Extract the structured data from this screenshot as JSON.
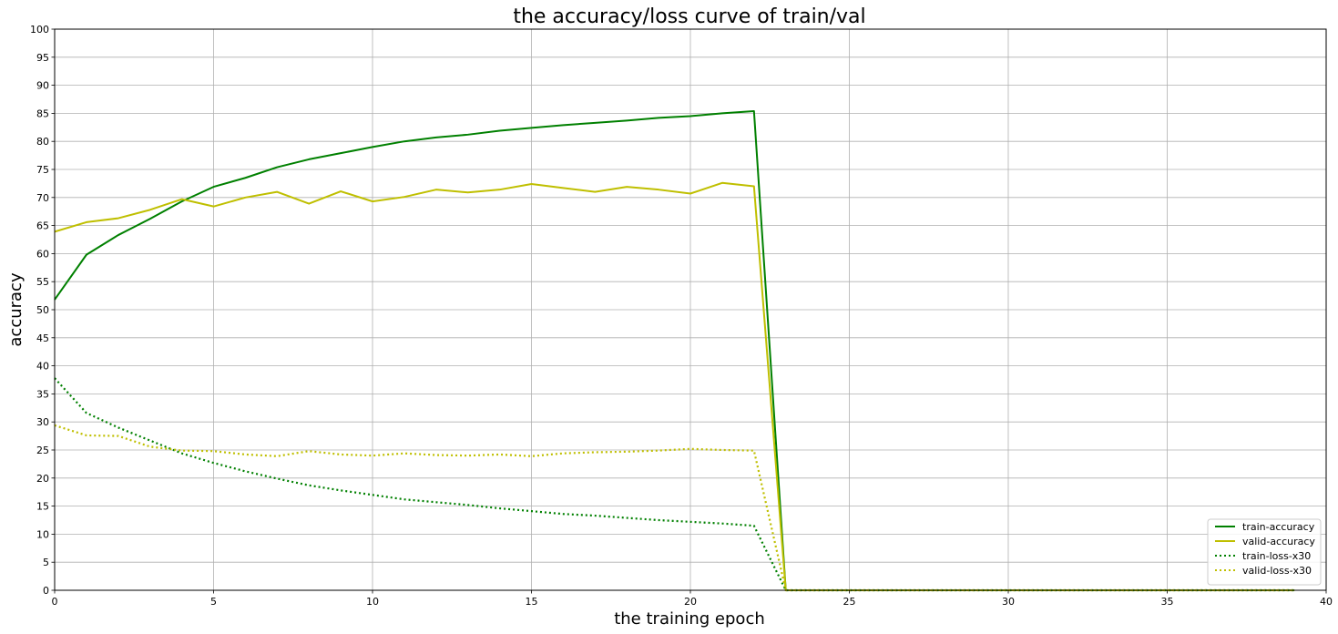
{
  "chart_data": {
    "type": "line",
    "title": "the accuracy/loss curve of train/val",
    "xlabel": "the training epoch",
    "ylabel": "accuracy",
    "xlim": [
      0,
      40
    ],
    "ylim": [
      0,
      100
    ],
    "xticks": [
      0,
      5,
      10,
      15,
      20,
      25,
      30,
      35,
      40
    ],
    "yticks": [
      0,
      5,
      10,
      15,
      20,
      25,
      30,
      35,
      40,
      45,
      50,
      55,
      60,
      65,
      70,
      75,
      80,
      85,
      90,
      95,
      100
    ],
    "grid": true,
    "legend_position": "bottom-right",
    "x": [
      0,
      1,
      2,
      3,
      4,
      5,
      6,
      7,
      8,
      9,
      10,
      11,
      12,
      13,
      14,
      15,
      16,
      17,
      18,
      19,
      20,
      21,
      22,
      23,
      24,
      25,
      26,
      27,
      28,
      29,
      30,
      31,
      32,
      33,
      34,
      35,
      36,
      37,
      38,
      39
    ],
    "series": [
      {
        "name": "train-accuracy",
        "color": "#008000",
        "style": "solid",
        "values": [
          51.8,
          59.8,
          63.3,
          66.2,
          69.3,
          71.9,
          73.5,
          75.4,
          76.8,
          77.9,
          79.0,
          80.0,
          80.7,
          81.2,
          81.9,
          82.4,
          82.9,
          83.3,
          83.7,
          84.2,
          84.5,
          85.0,
          85.4,
          0,
          0,
          0,
          0,
          0,
          0,
          0,
          0,
          0,
          0,
          0,
          0,
          0,
          0,
          0,
          0,
          0
        ]
      },
      {
        "name": "valid-accuracy",
        "color": "#bfbf00",
        "style": "solid",
        "values": [
          63.9,
          65.6,
          66.3,
          67.8,
          69.7,
          68.4,
          70.0,
          71.0,
          68.9,
          71.1,
          69.3,
          70.1,
          71.4,
          70.9,
          71.4,
          72.4,
          71.7,
          71.0,
          71.9,
          71.4,
          70.7,
          72.6,
          72.0,
          0,
          0,
          0,
          0,
          0,
          0,
          0,
          0,
          0,
          0,
          0,
          0,
          0,
          0,
          0,
          0,
          0
        ]
      },
      {
        "name": "train-loss-x30",
        "color": "#008000",
        "style": "dotted",
        "values": [
          37.8,
          31.6,
          29.0,
          26.7,
          24.4,
          22.7,
          21.2,
          19.9,
          18.7,
          17.8,
          17.0,
          16.2,
          15.7,
          15.2,
          14.6,
          14.1,
          13.6,
          13.3,
          12.9,
          12.5,
          12.2,
          11.9,
          11.5,
          0,
          0,
          0,
          0,
          0,
          0,
          0,
          0,
          0,
          0,
          0,
          0,
          0,
          0,
          0,
          0,
          0
        ]
      },
      {
        "name": "valid-loss-x30",
        "color": "#bfbf00",
        "style": "dotted",
        "values": [
          29.4,
          27.6,
          27.5,
          25.6,
          24.9,
          24.8,
          24.2,
          23.9,
          24.8,
          24.2,
          24.0,
          24.4,
          24.1,
          24.0,
          24.2,
          23.9,
          24.4,
          24.6,
          24.7,
          24.9,
          25.2,
          25.0,
          24.9,
          0,
          0,
          0,
          0,
          0,
          0,
          0,
          0,
          0,
          0,
          0,
          0,
          0,
          0,
          0,
          0,
          0
        ]
      }
    ]
  }
}
